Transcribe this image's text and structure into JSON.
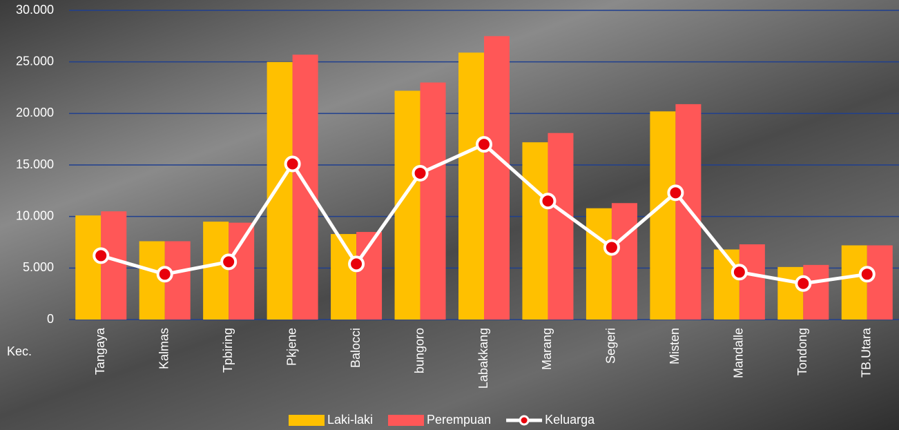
{
  "chart_data": {
    "type": "bar-line",
    "x_label": "Kec.",
    "categories": [
      "Tangaya",
      "Kalmas",
      "Tpbiring",
      "Pkjene",
      "Balocci",
      "bungoro",
      "Labakkang",
      "Marang",
      "Segeri",
      "Misten",
      "Mandalle",
      "Tondong",
      "TB.Utara"
    ],
    "series": [
      {
        "name": "Laki-laki",
        "kind": "bar",
        "color": "#ffc000",
        "values": [
          10100,
          7600,
          9500,
          25000,
          8300,
          22200,
          25900,
          17200,
          10800,
          20200,
          6800,
          5100,
          7200
        ]
      },
      {
        "name": "Perempuan",
        "kind": "bar",
        "color": "#ff5757",
        "values": [
          10500,
          7600,
          9400,
          25700,
          8500,
          23000,
          27500,
          18100,
          11300,
          20900,
          7300,
          5300,
          7200
        ]
      },
      {
        "name": "Keluarga",
        "kind": "line",
        "color": "#ffffff",
        "marker_color": "#e8000b",
        "values": [
          6200,
          4400,
          5600,
          15100,
          5400,
          14200,
          17000,
          11500,
          7000,
          12300,
          4600,
          3500,
          4400
        ]
      }
    ],
    "ylim": [
      0,
      30000
    ],
    "yticks": [
      0,
      {
        "value": 5000,
        "label": "5.000"
      },
      {
        "value": 10000,
        "label": "10.000"
      },
      {
        "value": 15000,
        "label": "15.000"
      },
      {
        "value": 20000,
        "label": "20.000"
      },
      {
        "value": 25000,
        "label": "25.000"
      },
      {
        "value": 30000,
        "label": "30.000"
      }
    ],
    "grid": true,
    "grid_color": "#1f3f8f",
    "legend": "bottom"
  }
}
